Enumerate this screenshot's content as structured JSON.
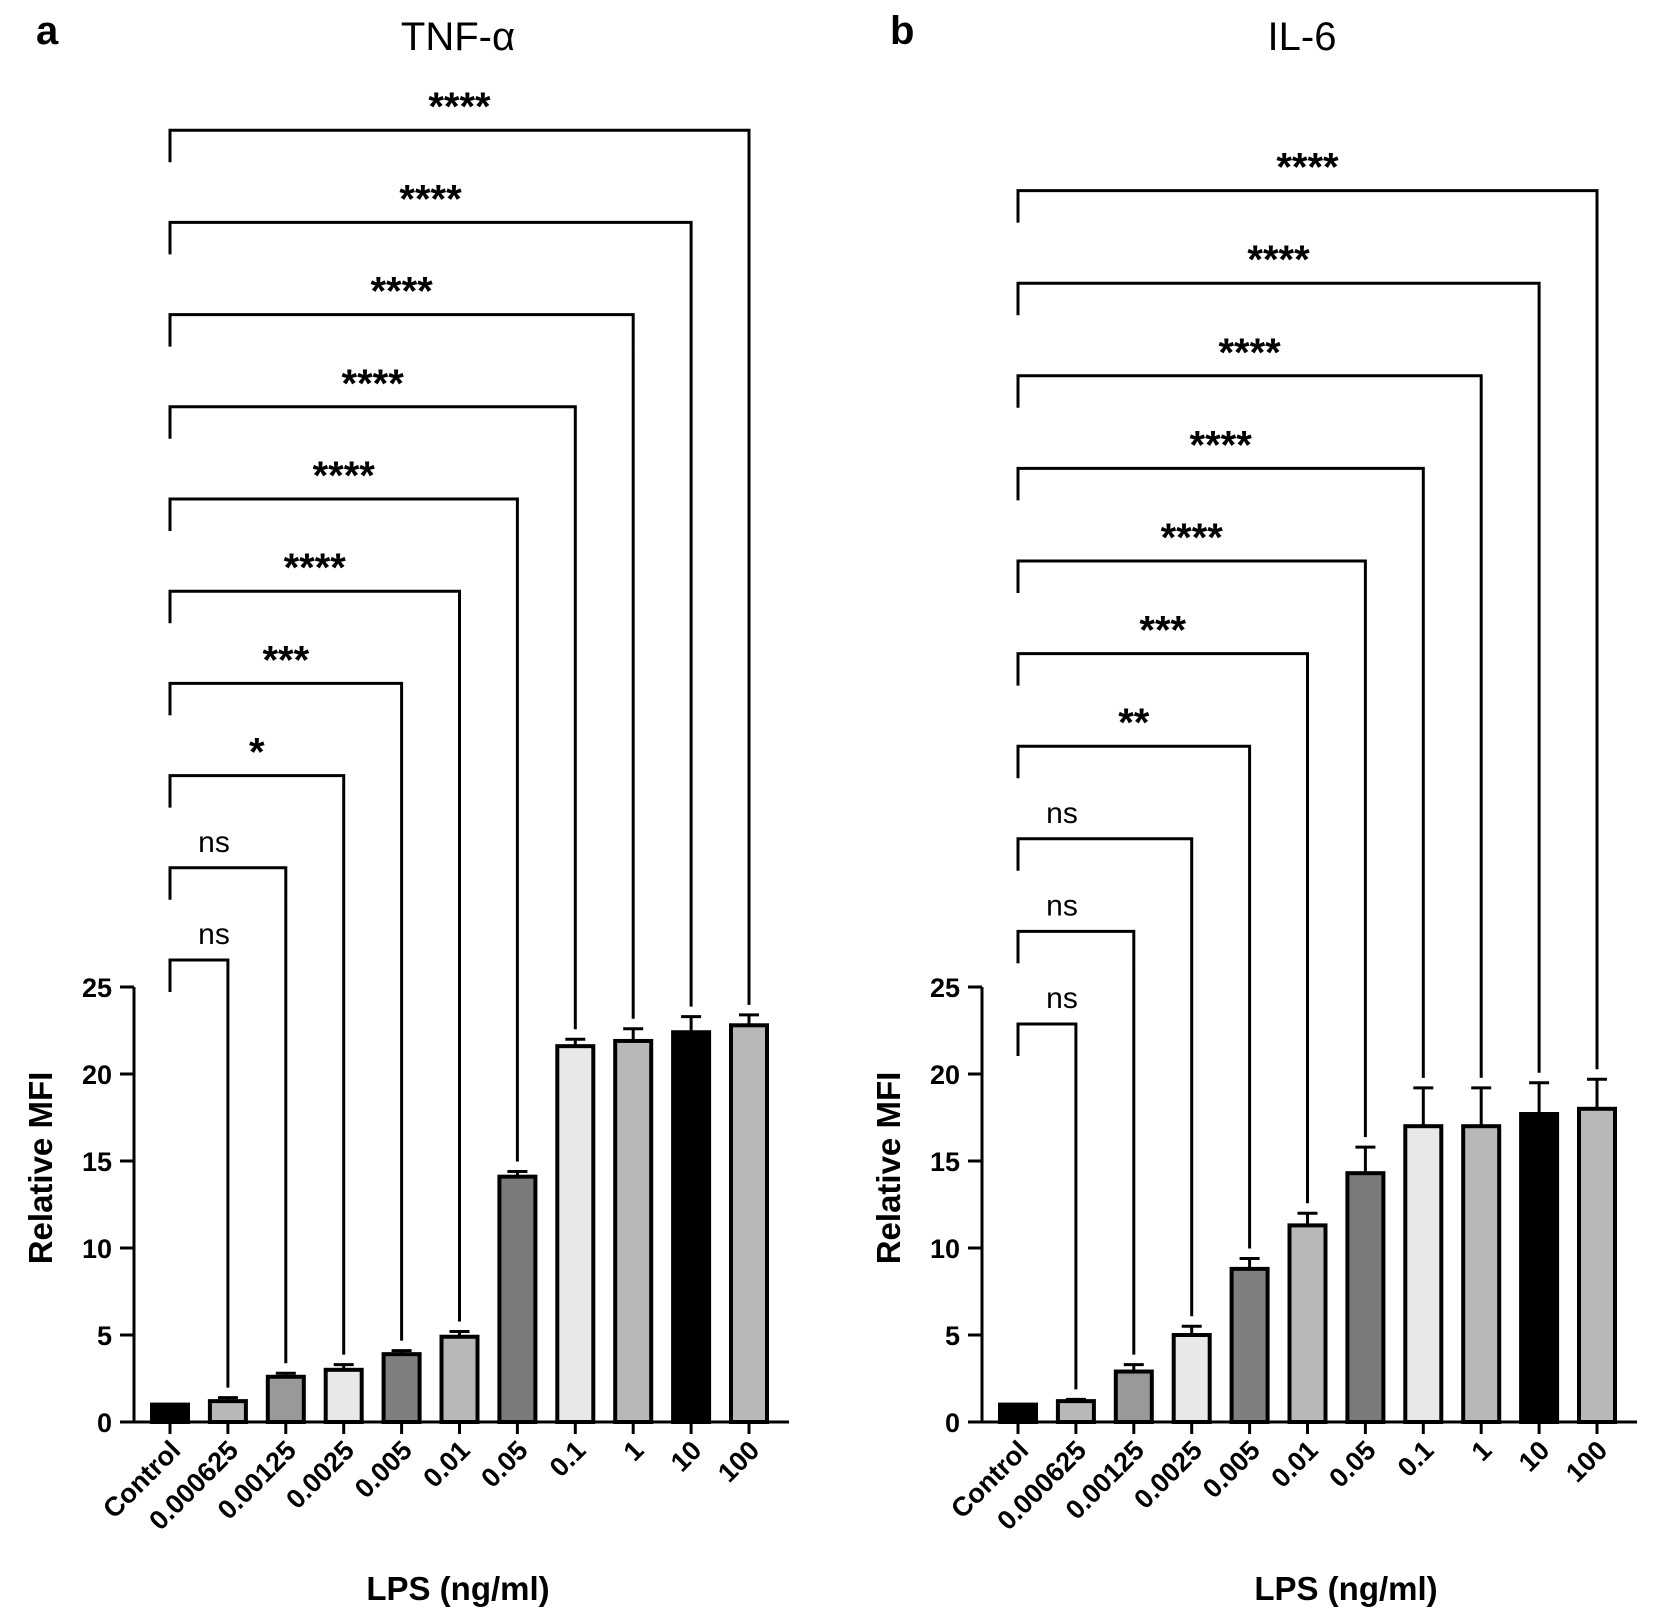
{
  "chart_data": [
    {
      "panel": "a",
      "title": "TNF-α",
      "type": "bar",
      "xlabel": "LPS (ng/ml)",
      "ylabel": "Relative MFI",
      "ylim": [
        0,
        25
      ],
      "yticks": [
        0,
        5,
        10,
        15,
        20,
        25
      ],
      "categories": [
        "Control",
        "0.000625",
        "0.00125",
        "0.0025",
        "0.005",
        "0.01",
        "0.05",
        "0.1",
        "1",
        "10",
        "100"
      ],
      "values": [
        1.0,
        1.2,
        2.6,
        3.0,
        3.9,
        4.9,
        14.1,
        21.6,
        21.9,
        22.4,
        22.8
      ],
      "errors": [
        0.0,
        0.2,
        0.2,
        0.3,
        0.2,
        0.3,
        0.3,
        0.4,
        0.7,
        0.9,
        0.6
      ],
      "bar_colors": [
        "#000000",
        "#b8b8b8",
        "#999999",
        "#e8e8e8",
        "#7f7f7f",
        "#b8b8b8",
        "#7a7a7a",
        "#e8e8e8",
        "#b8b8b8",
        "#000000",
        "#b8b8b8"
      ],
      "comparisons": [
        {
          "from": "Control",
          "to": "0.000625",
          "label": "ns"
        },
        {
          "from": "Control",
          "to": "0.00125",
          "label": "ns"
        },
        {
          "from": "Control",
          "to": "0.0025",
          "label": "*"
        },
        {
          "from": "Control",
          "to": "0.005",
          "label": "***"
        },
        {
          "from": "Control",
          "to": "0.01",
          "label": "****"
        },
        {
          "from": "Control",
          "to": "0.05",
          "label": "****"
        },
        {
          "from": "Control",
          "to": "0.1",
          "label": "****"
        },
        {
          "from": "Control",
          "to": "1",
          "label": "****"
        },
        {
          "from": "Control",
          "to": "10",
          "label": "****"
        },
        {
          "from": "Control",
          "to": "100",
          "label": "****"
        }
      ]
    },
    {
      "panel": "b",
      "title": "IL-6",
      "type": "bar",
      "xlabel": "LPS (ng/ml)",
      "ylabel": "Relative MFI",
      "ylim": [
        0,
        25
      ],
      "yticks": [
        0,
        5,
        10,
        15,
        20,
        25
      ],
      "categories": [
        "Control",
        "0.000625",
        "0.00125",
        "0.0025",
        "0.005",
        "0.01",
        "0.05",
        "0.1",
        "1",
        "10",
        "100"
      ],
      "values": [
        1.0,
        1.2,
        2.9,
        5.0,
        8.8,
        11.3,
        14.3,
        17.0,
        17.0,
        17.7,
        18.0
      ],
      "errors": [
        0.0,
        0.1,
        0.4,
        0.5,
        0.6,
        0.7,
        1.5,
        2.2,
        2.2,
        1.8,
        1.7
      ],
      "bar_colors": [
        "#000000",
        "#b8b8b8",
        "#999999",
        "#e8e8e8",
        "#7f7f7f",
        "#b8b8b8",
        "#7a7a7a",
        "#e8e8e8",
        "#b8b8b8",
        "#000000",
        "#b8b8b8"
      ],
      "comparisons": [
        {
          "from": "Control",
          "to": "0.000625",
          "label": "ns"
        },
        {
          "from": "Control",
          "to": "0.00125",
          "label": "ns"
        },
        {
          "from": "Control",
          "to": "0.0025",
          "label": "ns"
        },
        {
          "from": "Control",
          "to": "0.005",
          "label": "**"
        },
        {
          "from": "Control",
          "to": "0.01",
          "label": "***"
        },
        {
          "from": "Control",
          "to": "0.05",
          "label": "****"
        },
        {
          "from": "Control",
          "to": "0.1",
          "label": "****"
        },
        {
          "from": "Control",
          "to": "1",
          "label": "****"
        },
        {
          "from": "Control",
          "to": "10",
          "label": "****"
        },
        {
          "from": "Control",
          "to": "100",
          "label": "****"
        }
      ]
    }
  ]
}
